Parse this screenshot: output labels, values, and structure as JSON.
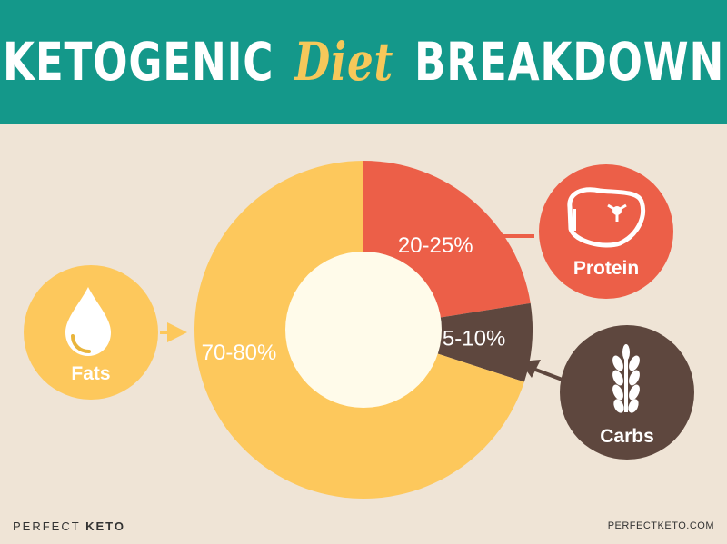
{
  "header": {
    "title_before": "KETOGENIC",
    "title_accent": "Diet",
    "title_after": "BREAKDOWN"
  },
  "chart_data": {
    "type": "pie",
    "title": "KETOGENIC Diet BREAKDOWN",
    "slices": [
      {
        "name": "Protein",
        "label": "20-25%",
        "value": 22.5,
        "color": "#ec5f48",
        "icon": "steak-icon"
      },
      {
        "name": "Carbs",
        "label": "5-10%",
        "value": 7.5,
        "color": "#5e473e",
        "icon": "wheat-icon"
      },
      {
        "name": "Fats",
        "label": "70-80%",
        "value": 70,
        "color": "#fdc85c",
        "icon": "oil-drop-icon"
      }
    ]
  },
  "footer": {
    "brand_light": "PERFECT",
    "brand_bold": "KETO",
    "url": "PERFECTKETO.COM"
  },
  "colors": {
    "banner": "#14988a",
    "background": "#efe4d6",
    "accent": "#f6c85a",
    "center": "#fffbea"
  }
}
